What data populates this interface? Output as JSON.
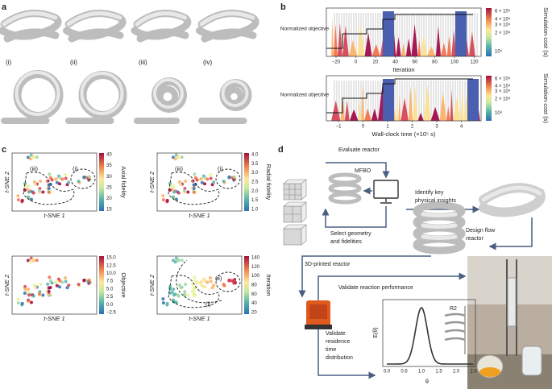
{
  "panels": {
    "a": {
      "label": "a",
      "insets": [
        "(i)",
        "(ii)",
        "(iii)",
        "(iv)"
      ]
    },
    "b": {
      "label": "b",
      "y_label": "Normalized objective",
      "top": {
        "x_label": "Iteration",
        "x_ticks": [
          "−20",
          "0",
          "20",
          "40",
          "60",
          "80",
          "100",
          "120"
        ]
      },
      "bottom": {
        "x_label": "Wall-clock time (×10⁵ s)",
        "x_ticks": [
          "−1",
          "0",
          "1",
          "2",
          "3",
          "4"
        ]
      },
      "colorbar": {
        "label": "Simulation cost (s)",
        "ticks": [
          "6 × 10⁴",
          "4 × 10⁴",
          "3 × 10⁴",
          "2 × 10⁴",
          "10⁴"
        ]
      }
    },
    "c": {
      "label": "c",
      "x_label": "t-SNE 1",
      "y_label": "t-SNE 2",
      "plots": [
        {
          "colorbar_label": "Axial fidelity",
          "ticks": [
            "40",
            "35",
            "30",
            "25",
            "20",
            "15"
          ],
          "regions": [
            "(iii)",
            "(i)"
          ]
        },
        {
          "colorbar_label": "Radial fidelity",
          "ticks": [
            "4.0",
            "3.5",
            "3.0",
            "2.5",
            "2.0",
            "1.5",
            "1.0"
          ],
          "regions": [
            "(iii)",
            "(i)"
          ]
        },
        {
          "colorbar_label": "Objective",
          "ticks": [
            "15.0",
            "12.5",
            "10.0",
            "7.5",
            "5.0",
            "2.5",
            "0.0",
            "−2.5"
          ],
          "regions": []
        },
        {
          "colorbar_label": "Iteration",
          "ticks": [
            "140",
            "120",
            "100",
            "80",
            "60",
            "40",
            "20"
          ],
          "regions": [
            "(i)",
            "(ii)"
          ]
        }
      ]
    },
    "d": {
      "label": "d",
      "evaluate": "Evaluate reactor",
      "mfbo": "MFBO",
      "identify": [
        "Identify key",
        "physical insights"
      ],
      "select": [
        "Select geometry",
        "and fidelities"
      ],
      "design": [
        "Design flow",
        "reactor"
      ],
      "printed": "3D-printed reactor",
      "validate_reaction": "Validate reaction performance",
      "validate_rtd": [
        "Validate",
        "residence",
        "time",
        "distribution"
      ],
      "inset": {
        "y_label": "E(θ)",
        "x_label": "θ",
        "x_ticks": [
          "0.0",
          "0.5",
          "1.0",
          "1.5",
          "2.0",
          "2.5"
        ],
        "tag": "R2"
      }
    }
  }
}
